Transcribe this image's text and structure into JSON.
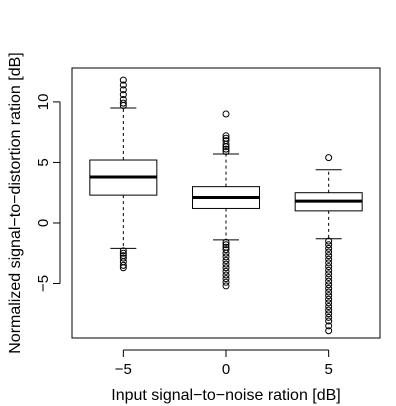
{
  "chart_data": {
    "type": "box",
    "title": "",
    "xlabel": "Input signal−to−noise ration [dB]",
    "ylabel": "Normalized signal−to−distortion ration [dB]",
    "ylim": [
      -9.5,
      12.8
    ],
    "xlim": [
      0.5,
      3.5
    ],
    "categories": [
      "−5",
      "0",
      "5"
    ],
    "yticks": [
      -5,
      0,
      5,
      10
    ],
    "ytick_labels": [
      "−5",
      "0",
      "5",
      "10"
    ],
    "grid": false,
    "legend": "none",
    "colors": {
      "stroke": "#000000",
      "fill": "#ffffff"
    },
    "boxes": [
      {
        "label": "−5",
        "whisker_low": -2.1,
        "q1": 2.3,
        "median": 3.8,
        "q3": 5.2,
        "whisker_high": 9.5,
        "outliers": [
          11.8,
          11.4,
          11.0,
          10.6,
          10.2,
          9.9,
          9.7,
          -2.3,
          -2.5,
          -2.7,
          -2.9,
          -3.2,
          -3.5,
          -3.7
        ]
      },
      {
        "label": "0",
        "whisker_low": -1.4,
        "q1": 1.2,
        "median": 2.1,
        "q3": 3.0,
        "whisker_high": 5.7,
        "outliers": [
          9.0,
          7.2,
          7.0,
          6.8,
          6.5,
          6.3,
          6.1,
          5.9,
          -1.6,
          -1.8,
          -2.0,
          -2.2,
          -2.5,
          -2.8,
          -3.1,
          -3.4,
          -3.7,
          -4.0,
          -4.3,
          -4.6,
          -4.9,
          -5.2
        ]
      },
      {
        "label": "5",
        "whisker_low": -1.3,
        "q1": 1.0,
        "median": 1.8,
        "q3": 2.5,
        "whisker_high": 4.4,
        "outliers": [
          5.4,
          -1.5,
          -1.8,
          -2.1,
          -2.4,
          -2.7,
          -3.0,
          -3.3,
          -3.6,
          -3.9,
          -4.2,
          -4.5,
          -4.8,
          -5.1,
          -5.4,
          -5.7,
          -6.0,
          -6.3,
          -6.6,
          -6.9,
          -7.2,
          -7.5,
          -7.8,
          -8.1,
          -8.5,
          -8.9
        ]
      }
    ]
  }
}
